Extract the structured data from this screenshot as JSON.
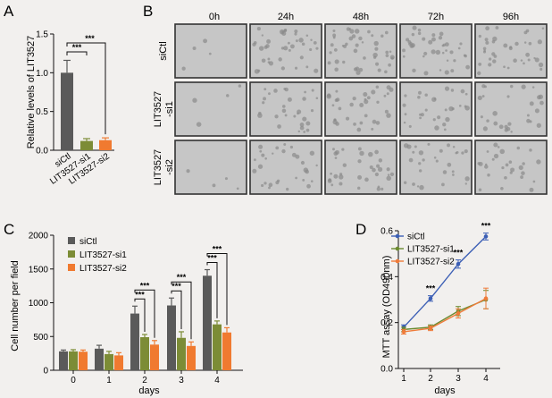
{
  "colors": {
    "siCtl": "#5a5a5a",
    "si1": "#7c8c36",
    "si2": "#f07a30",
    "blue": "#3c5fb5",
    "green": "#6a8a2e",
    "orange": "#ef7b3a"
  },
  "panel_letters": [
    "A",
    "B",
    "C",
    "D"
  ],
  "chart_data": [
    {
      "id": "A",
      "type": "bar",
      "title": "",
      "ylabel": "Relative levels of LIT3527",
      "xlabel": "",
      "ylim": [
        0,
        1.5
      ],
      "yticks": [
        "0.0",
        "0.5",
        "1.0",
        "1.5"
      ],
      "categories": [
        "siCtl",
        "LIT3527-si1",
        "LIT3527-si2"
      ],
      "values": [
        1.0,
        0.12,
        0.13
      ],
      "errors": [
        0.16,
        0.03,
        0.03
      ],
      "significance": [
        {
          "from": 0,
          "to": 1,
          "label": "***"
        },
        {
          "from": 0,
          "to": 2,
          "label": "***"
        }
      ]
    },
    {
      "id": "C",
      "type": "bar",
      "ylabel": "Cell number per field",
      "xlabel": "days",
      "ylim": [
        0,
        2000
      ],
      "yticks": [
        "0",
        "500",
        "1000",
        "1500",
        "2000"
      ],
      "categories": [
        "0",
        "1",
        "2",
        "3",
        "4"
      ],
      "legend": [
        "siCtl",
        "LIT3527-si1",
        "LIT3527-si2"
      ],
      "series": [
        {
          "name": "siCtl",
          "values": [
            280,
            320,
            840,
            960,
            1400
          ],
          "errors": [
            20,
            50,
            110,
            110,
            90
          ]
        },
        {
          "name": "LIT3527-si1",
          "values": [
            280,
            240,
            490,
            480,
            680
          ],
          "errors": [
            25,
            40,
            40,
            90,
            50
          ]
        },
        {
          "name": "LIT3527-si2",
          "values": [
            275,
            220,
            380,
            360,
            560
          ],
          "errors": [
            25,
            40,
            60,
            60,
            70
          ]
        }
      ],
      "significance_label": "***"
    },
    {
      "id": "D",
      "type": "line",
      "ylabel": "MTT assay (OD490nm)",
      "xlabel": "days",
      "ylim": [
        0.0,
        0.6
      ],
      "yticks": [
        "0.0",
        "0.2",
        "0.4",
        "0.6"
      ],
      "x": [
        "1",
        "2",
        "3",
        "4"
      ],
      "series": [
        {
          "name": "siCtl",
          "values": [
            0.18,
            0.305,
            0.455,
            0.575
          ],
          "errors": [
            0.01,
            0.012,
            0.018,
            0.015
          ]
        },
        {
          "name": "LIT3527-si1",
          "values": [
            0.17,
            0.18,
            0.25,
            0.3
          ],
          "errors": [
            0.01,
            0.01,
            0.02,
            0.04
          ]
        },
        {
          "name": "LIT3527-si2",
          "values": [
            0.16,
            0.175,
            0.24,
            0.305
          ],
          "errors": [
            0.01,
            0.01,
            0.02,
            0.045
          ]
        }
      ],
      "significance": [
        "",
        "***",
        "***",
        "***"
      ]
    }
  ],
  "micrographs": {
    "columns": [
      "0h",
      "24h",
      "48h",
      "72h",
      "96h"
    ],
    "rows": [
      "siCtl",
      "LIT3527\n-si1",
      "LIT3527\n-si2"
    ]
  }
}
